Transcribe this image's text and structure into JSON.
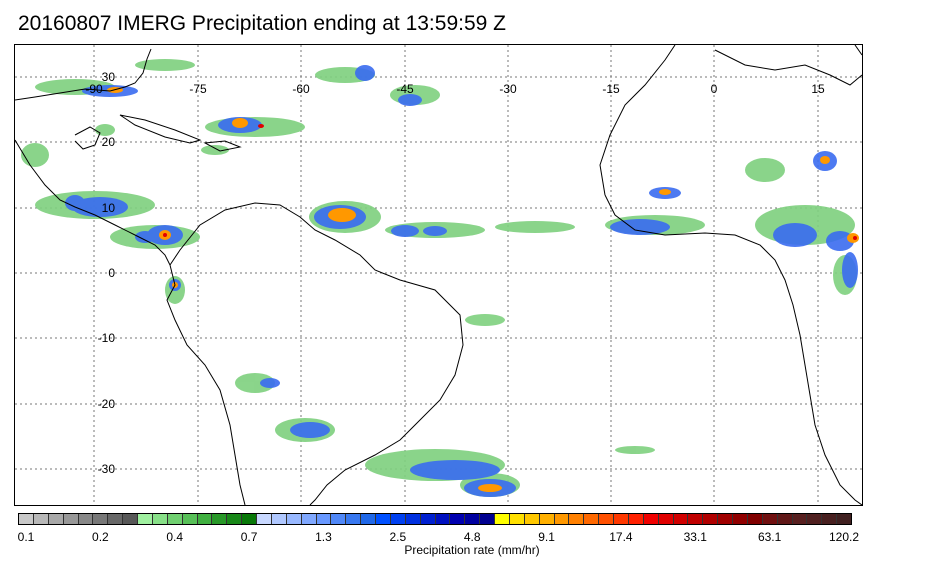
{
  "title": "20160807 IMERG Precipitation ending at 13:59:59 Z",
  "map": {
    "lon_labels": [
      "-90",
      "-75",
      "-60",
      "-45",
      "-30",
      "-15",
      "0",
      "15"
    ],
    "lat_labels": [
      "30",
      "20",
      "10",
      "0",
      "-10",
      "-20",
      "-30"
    ]
  },
  "colorbar": {
    "caption": "Precipitation rate (mm/hr)",
    "tick_labels": [
      "0.1",
      "0.2",
      "0.4",
      "0.7",
      "1.3",
      "2.5",
      "4.8",
      "9.1",
      "17.4",
      "33.1",
      "63.1",
      "120.2"
    ],
    "colors": [
      "#c8c8c8",
      "#b8b8b8",
      "#a8a8a8",
      "#989898",
      "#888888",
      "#787878",
      "#686868",
      "#585858",
      "#a0f0a0",
      "#88e088",
      "#70d070",
      "#58c058",
      "#40b040",
      "#289828",
      "#188818",
      "#087808",
      "#c8d8ff",
      "#b0c8ff",
      "#98b8ff",
      "#80a8ff",
      "#6898ff",
      "#5088f8",
      "#3878f0",
      "#2068e8",
      "#0050ff",
      "#0040f0",
      "#0030e0",
      "#0020d0",
      "#0010c0",
      "#0000b0",
      "#0000a0",
      "#000090",
      "#ffff00",
      "#ffe000",
      "#ffc800",
      "#ffb000",
      "#ff9800",
      "#ff8000",
      "#ff6800",
      "#ff5000",
      "#ff3800",
      "#ff2000",
      "#f00000",
      "#e00000",
      "#d00000",
      "#c00000",
      "#b00000",
      "#a00000",
      "#900000",
      "#800000",
      "#701010",
      "#601818",
      "#582020",
      "#502020",
      "#482020",
      "#402020"
    ]
  }
}
